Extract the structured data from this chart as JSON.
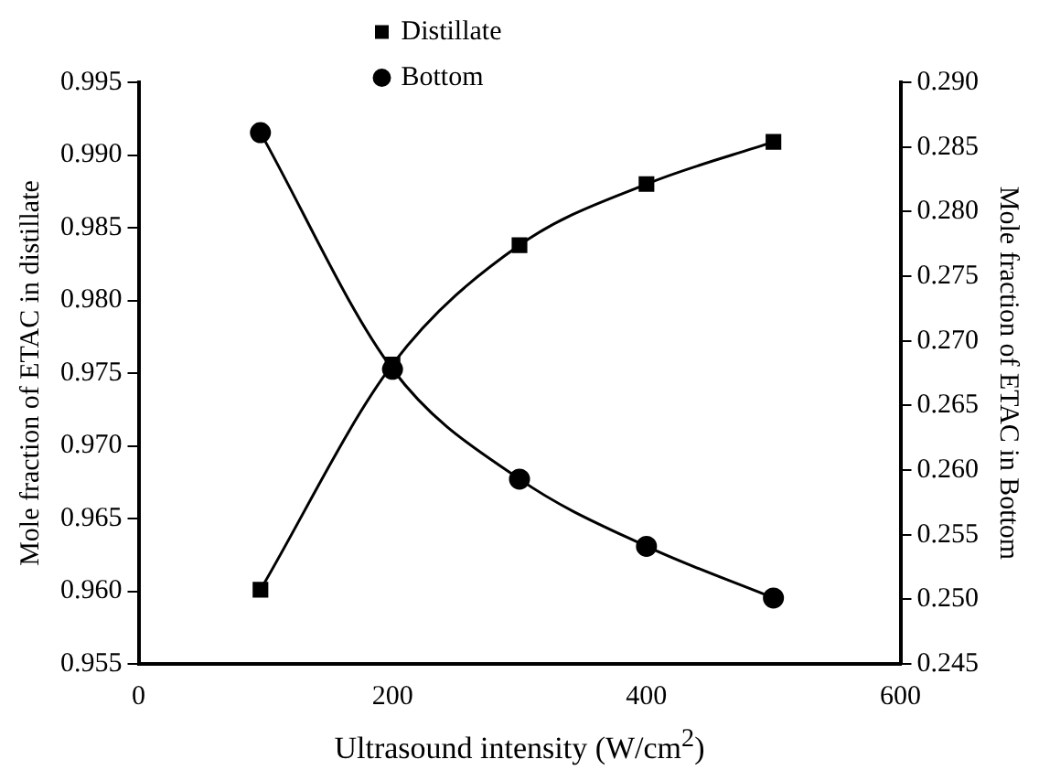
{
  "chart_data": {
    "type": "line",
    "xlabel": "Ultrasound intensity (W/cm$^{2}$)",
    "ylabel": "Mole fraction of ETAC in distillate",
    "y2label": "Mole fraction of ETAC in Bottom",
    "x": [
      96,
      200,
      300,
      400,
      500
    ],
    "series": [
      {
        "name": "Distillate",
        "color": "#000000",
        "marker": "square",
        "values": [
          0.9601,
          0.9756,
          0.9838,
          0.988,
          0.9909
        ]
      },
      {
        "name": "Bottom",
        "color": "#000000",
        "marker": "circle",
        "axis": "y2",
        "values": [
          0.2861,
          0.2678,
          0.2593,
          0.2541,
          0.2501
        ]
      }
    ],
    "xlim": [
      0,
      600
    ],
    "xticks": [
      0,
      200,
      400,
      600
    ],
    "ylim": [
      0.955,
      0.995
    ],
    "yticks": [
      0.955,
      {
        "value": 0.96,
        "label": "0.960"
      },
      0.965,
      {
        "value": 0.97,
        "label": "0.970"
      },
      0.975,
      {
        "value": 0.98,
        "label": "0.980"
      },
      0.985,
      {
        "value": 0.99,
        "label": "0.990"
      },
      0.995
    ],
    "y2lim": [
      0.245,
      0.29
    ],
    "y2ticks": [
      0.245,
      {
        "value": 0.25,
        "label": "0.250"
      },
      0.255,
      {
        "value": 0.26,
        "label": "0.260"
      },
      0.265,
      {
        "value": 0.27,
        "label": "0.270"
      },
      0.275,
      {
        "value": 0.28,
        "label": "0.280"
      },
      0.285,
      {
        "value": 0.29,
        "label": "0.290"
      }
    ],
    "legend": "top left",
    "grid": false,
    "line_style": "solid"
  }
}
